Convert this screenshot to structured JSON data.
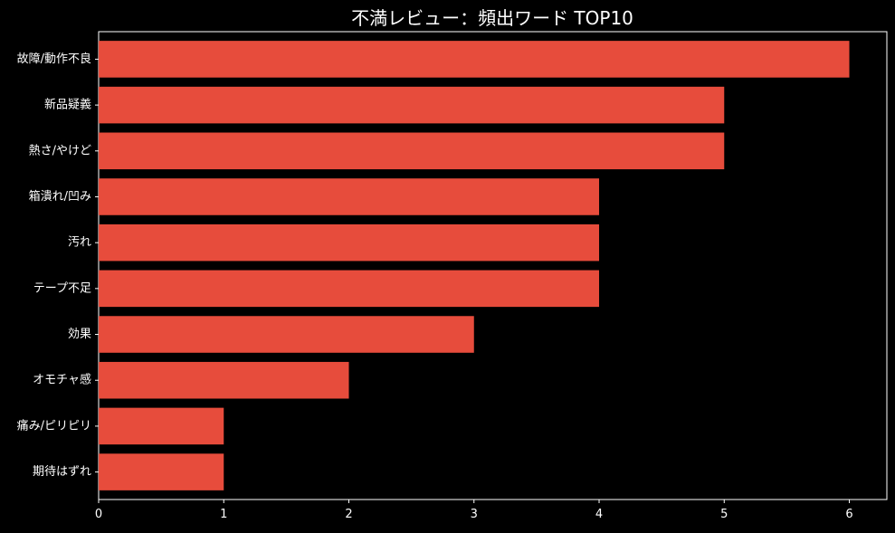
{
  "chart_data": {
    "type": "bar",
    "orientation": "horizontal",
    "title": "不満レビュー：頻出ワード TOP10",
    "categories": [
      "故障/動作不良",
      "新品疑義",
      "熱さ/やけど",
      "箱潰れ/凹み",
      "汚れ",
      "テープ不足",
      "効果",
      "オモチャ感",
      "痛み/ピリピリ",
      "期待はずれ"
    ],
    "values": [
      6,
      5,
      5,
      4,
      4,
      4,
      3,
      2,
      1,
      1
    ],
    "xlim": [
      0,
      6.3
    ],
    "xticks": [
      "0",
      "1",
      "2",
      "3",
      "4",
      "5",
      "6"
    ],
    "grid": false,
    "colors": {
      "bar": "#e74c3c",
      "background": "#000000",
      "axis": "#ffffff",
      "text": "#ffffff"
    }
  }
}
